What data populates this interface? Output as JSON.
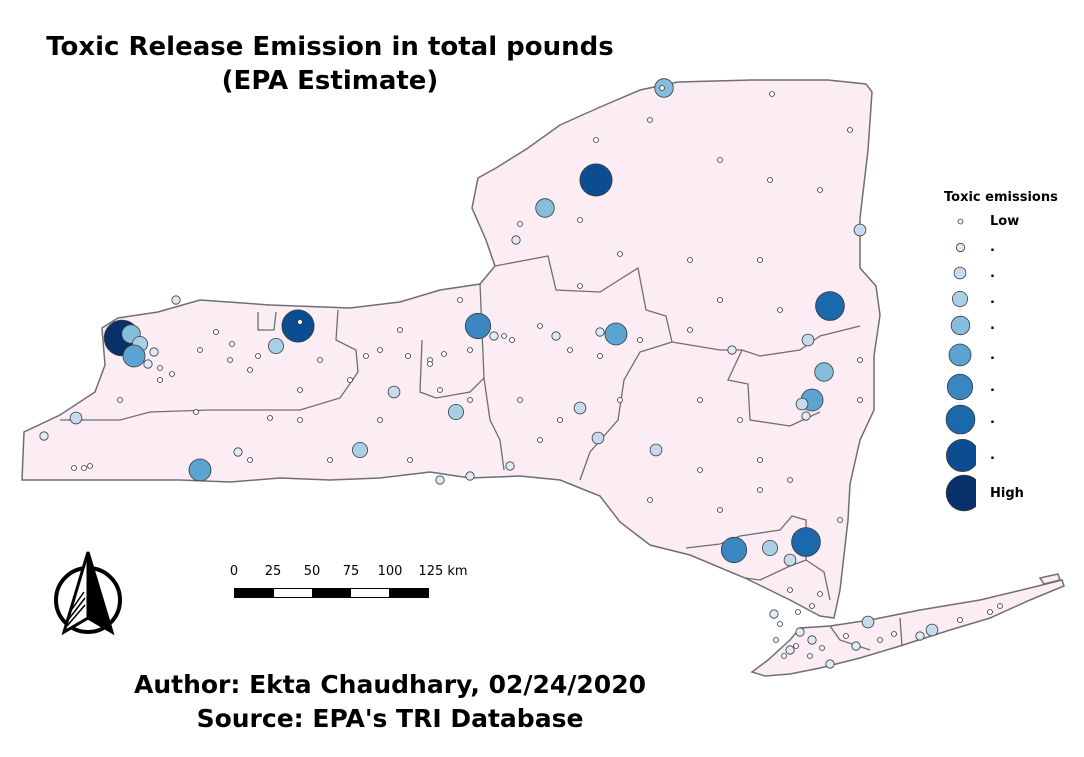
{
  "map": {
    "title_line1": "Toxic Release Emission in total pounds",
    "title_line2": "(EPA Estimate)",
    "fill_color": "#fcecf4",
    "border_color": "#6f6f6f"
  },
  "legend": {
    "title": "Toxic emissions",
    "items": [
      {
        "label": "Low",
        "color": "#f7fbff",
        "level": 1
      },
      {
        "label": ".",
        "color": "#deebf7",
        "level": 2
      },
      {
        "label": ".",
        "color": "#c6dbef",
        "level": 3
      },
      {
        "label": ".",
        "color": "#a9cfe5",
        "level": 4
      },
      {
        "label": ".",
        "color": "#86bcdc",
        "level": 5
      },
      {
        "label": ".",
        "color": "#5ba3d0",
        "level": 6
      },
      {
        "label": ".",
        "color": "#3986c0",
        "level": 7
      },
      {
        "label": ".",
        "color": "#1c68ad",
        "level": 8
      },
      {
        "label": ".",
        "color": "#0b4d91",
        "level": 9
      },
      {
        "label": "High",
        "color": "#08306b",
        "level": 10
      }
    ]
  },
  "scale_bar": {
    "ticks": [
      "0",
      "25",
      "50",
      "75",
      "100",
      "125 km"
    ]
  },
  "credits": {
    "author": "Author: Ekta Chaudhary, 02/24/2020",
    "source": "Source: EPA's TRI Database"
  }
}
